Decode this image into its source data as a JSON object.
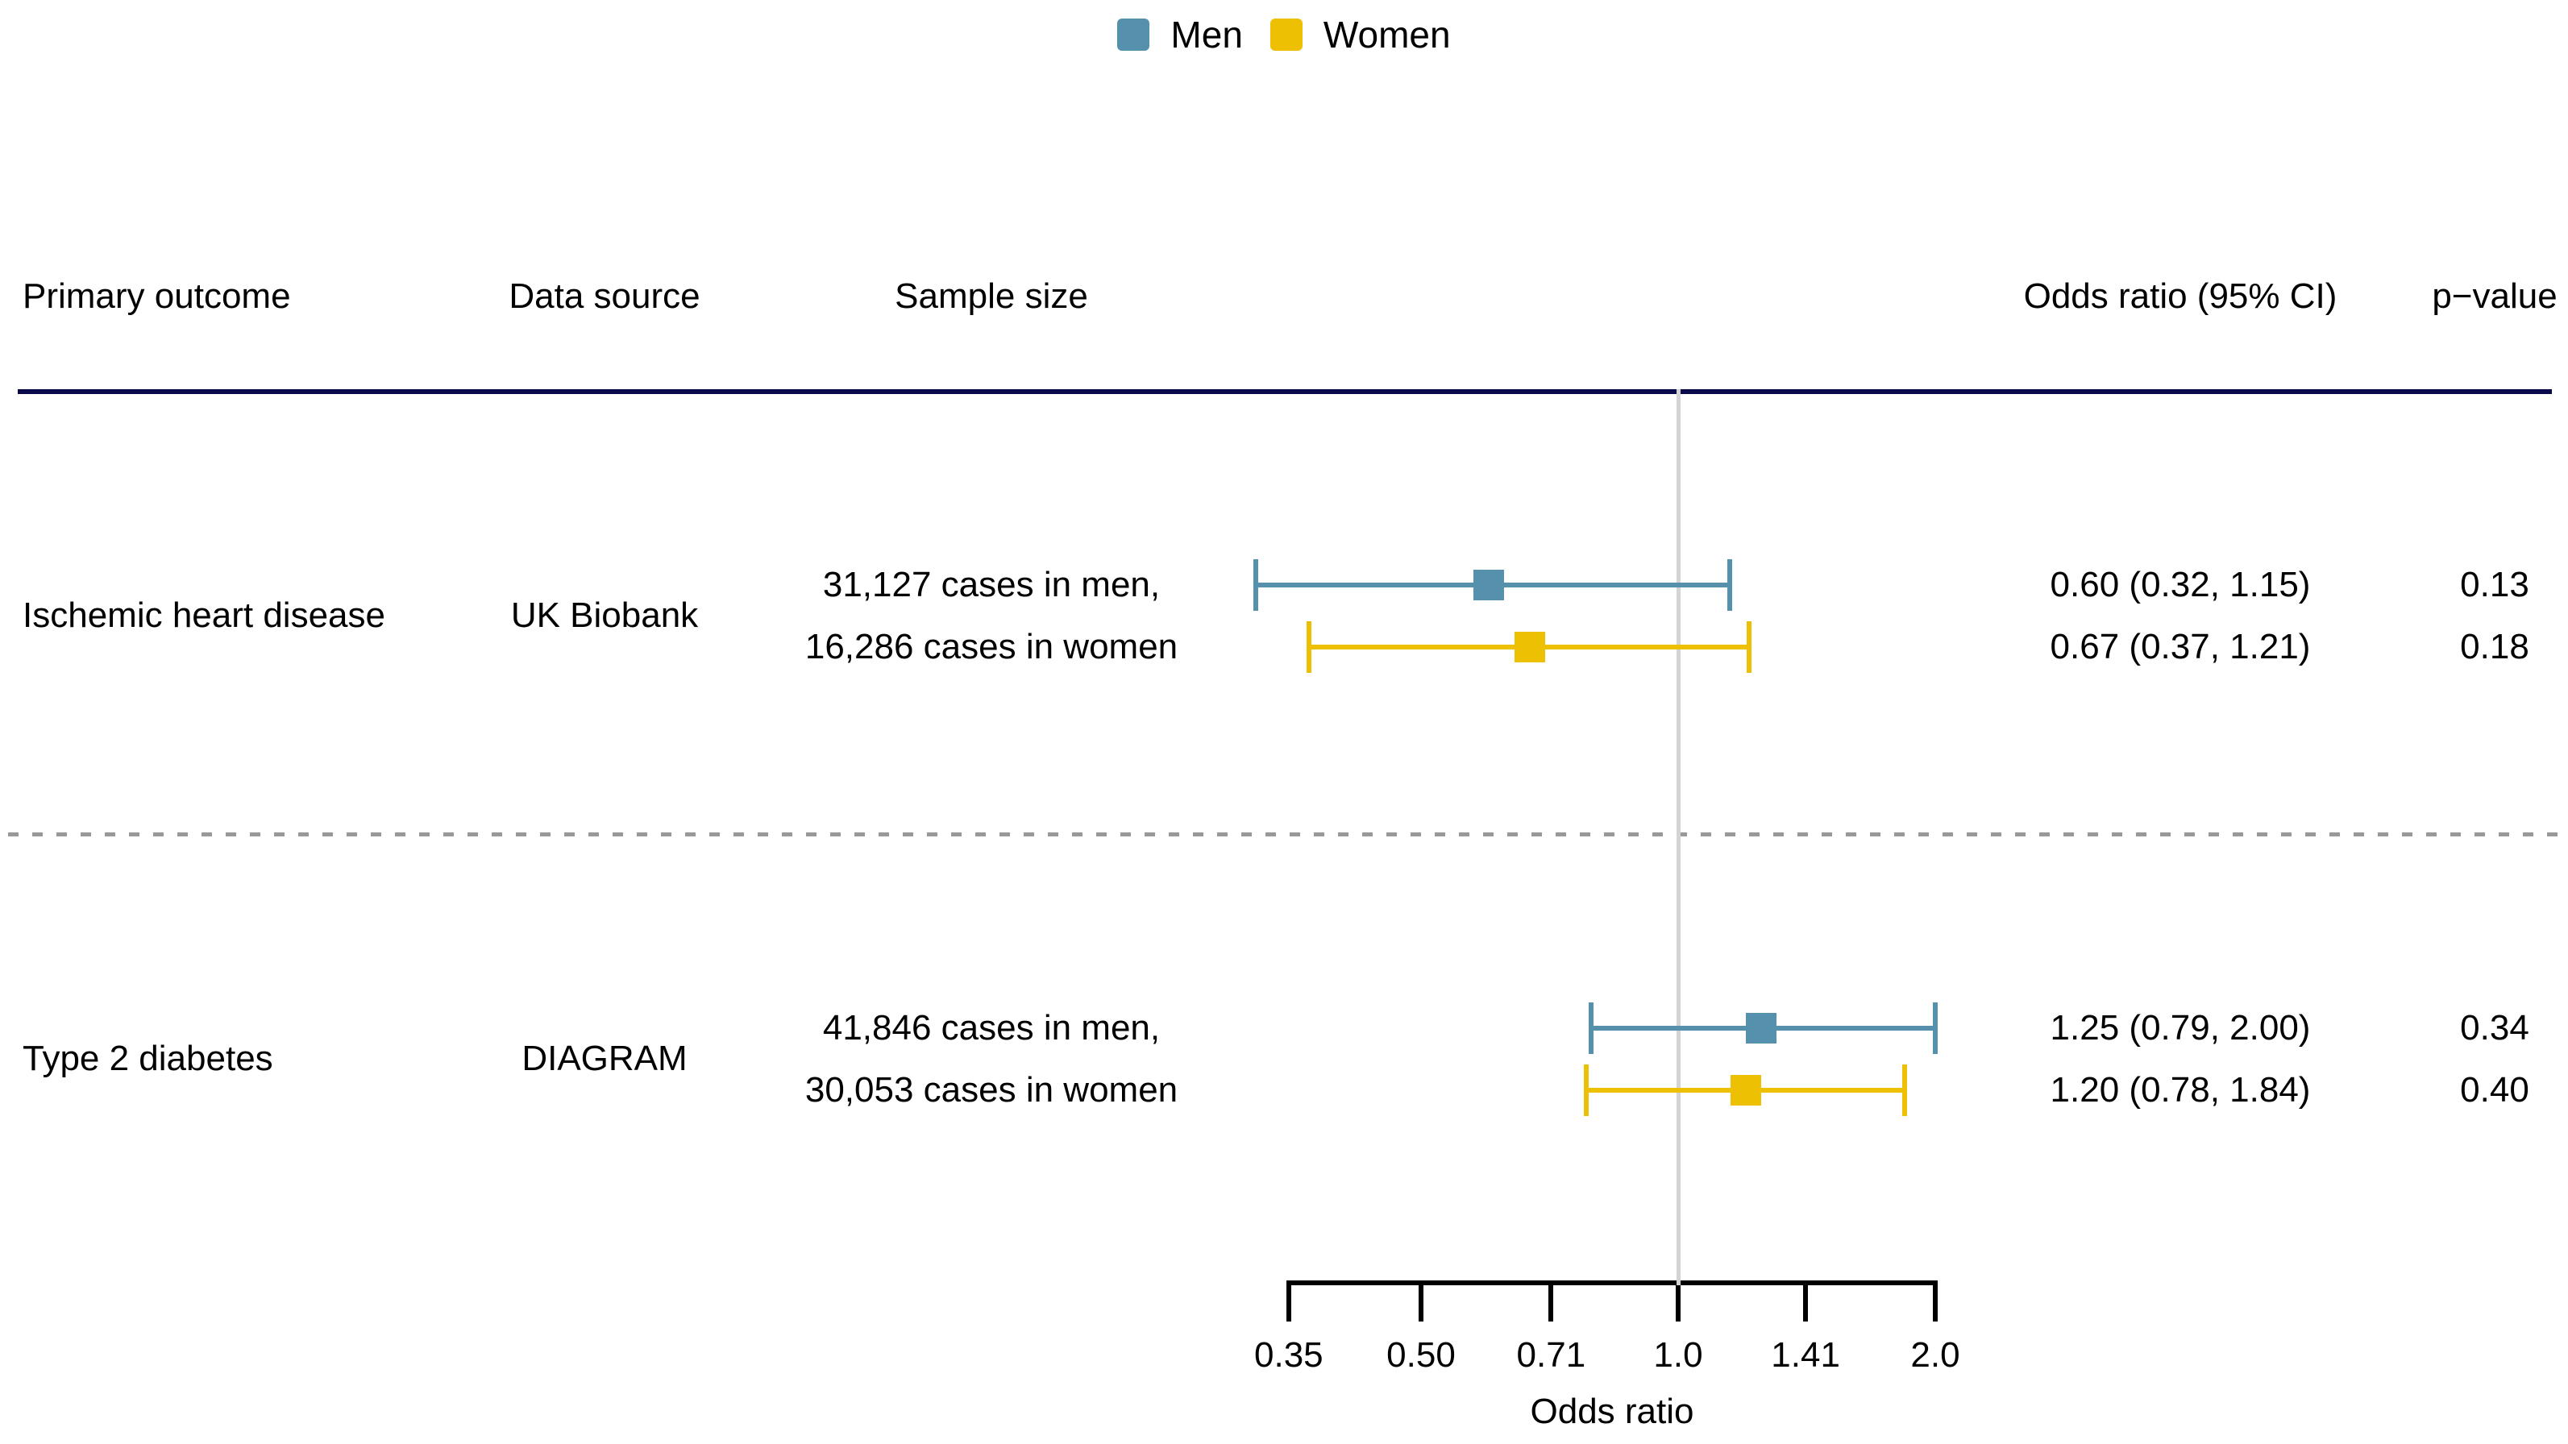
{
  "legend": {
    "items": [
      {
        "label": "Men",
        "color": "#5590AC"
      },
      {
        "label": "Women",
        "color": "#EDC004"
      }
    ]
  },
  "headers": {
    "primary_outcome": "Primary outcome",
    "data_source": "Data source",
    "sample_size": "Sample size",
    "odds_ratio": "Odds ratio (95% CI)",
    "p_value": "p−value"
  },
  "colors": {
    "header_rule": "#08084A",
    "reference_line": "#D4D4D4",
    "section_divider": "#999999",
    "axis": "#000000",
    "men": "#5590AC",
    "women": "#EDC004"
  },
  "chart_data": {
    "type": "forest",
    "x_scale": "log",
    "xlabel": "Odds ratio",
    "x_range": [
      0.35,
      2.0
    ],
    "x_ticks": [
      0.35,
      0.5,
      0.71,
      1.0,
      1.41,
      2.0
    ],
    "x_tick_labels": [
      "0.35",
      "0.50",
      "0.71",
      "1.0",
      "1.41",
      "2.0"
    ],
    "reference_line": 1.0,
    "legend_position": "top-center",
    "series_colors": {
      "Men": "#5590AC",
      "Women": "#EDC004"
    },
    "rows": [
      {
        "outcome": "Ischemic heart disease",
        "data_source": "UK Biobank",
        "sample_size_lines": [
          "31,127 cases in men,",
          "16,286 cases in women"
        ],
        "estimates": [
          {
            "group": "Men",
            "or": 0.6,
            "ci_low": 0.32,
            "ci_high": 1.15,
            "or_ci_text": "0.60 (0.32, 1.15)",
            "p_value": "0.13"
          },
          {
            "group": "Women",
            "or": 0.67,
            "ci_low": 0.37,
            "ci_high": 1.21,
            "or_ci_text": "0.67 (0.37, 1.21)",
            "p_value": "0.18"
          }
        ]
      },
      {
        "outcome": "Type 2 diabetes",
        "data_source": "DIAGRAM",
        "sample_size_lines": [
          "41,846 cases in men,",
          "30,053 cases in women"
        ],
        "estimates": [
          {
            "group": "Men",
            "or": 1.25,
            "ci_low": 0.79,
            "ci_high": 2.0,
            "or_ci_text": "1.25 (0.79, 2.00)",
            "p_value": "0.34"
          },
          {
            "group": "Women",
            "or": 1.2,
            "ci_low": 0.78,
            "ci_high": 1.84,
            "or_ci_text": "1.20 (0.78, 1.84)",
            "p_value": "0.40"
          }
        ]
      }
    ]
  }
}
